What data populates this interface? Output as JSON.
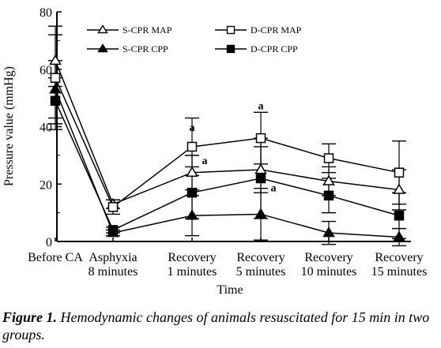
{
  "chart_data": {
    "type": "line",
    "categories": [
      [
        "Before CA"
      ],
      [
        "Asphyxia",
        "8 minutes"
      ],
      [
        "Recovery",
        "1 minutes"
      ],
      [
        "Recovery",
        "5 minutes"
      ],
      [
        "Recovery",
        "10 minutes"
      ],
      [
        "Recovery",
        "15 minutes"
      ]
    ],
    "xlabel": "Time",
    "ylabel": "Pressure value (mmHg)",
    "ylim": [
      0,
      80
    ],
    "yticks": [
      0,
      20,
      40,
      60,
      80
    ],
    "grid": false,
    "legend": "top",
    "series": [
      {
        "name": "S-CPR MAP",
        "marker": "open-triangle",
        "values": [
          63,
          13,
          24,
          25,
          21,
          18
        ],
        "error": [
          9,
          1.5,
          6,
          8,
          5,
          7
        ]
      },
      {
        "name": "D-CPR MAP",
        "marker": "open-square",
        "values": [
          57,
          12,
          33,
          36,
          29,
          24
        ],
        "error": [
          18,
          2.5,
          10,
          9,
          5,
          11
        ]
      },
      {
        "name": "S-CPR CPP",
        "marker": "filled-triangle",
        "values": [
          53,
          3,
          9,
          9.5,
          3,
          1.5
        ],
        "error": [
          10,
          1,
          7,
          9,
          4,
          3
        ]
      },
      {
        "name": "D-CPR CPP",
        "marker": "filled-square",
        "values": [
          49,
          4,
          17,
          22,
          16,
          9
        ],
        "error": [
          8,
          1,
          9,
          14,
          6,
          8
        ]
      }
    ],
    "annotations": [
      {
        "text": "a",
        "category": 2,
        "y": 38.5
      },
      {
        "text": "a",
        "category": 2,
        "y": 27
      },
      {
        "text": "a",
        "category": 3,
        "y": 46
      },
      {
        "text": "a",
        "category": 3,
        "y": 17.5
      }
    ]
  },
  "caption": {
    "label": "Figure 1.",
    "text": " Hemodynamic changes of animals resuscitated for 15 min in two groups."
  }
}
